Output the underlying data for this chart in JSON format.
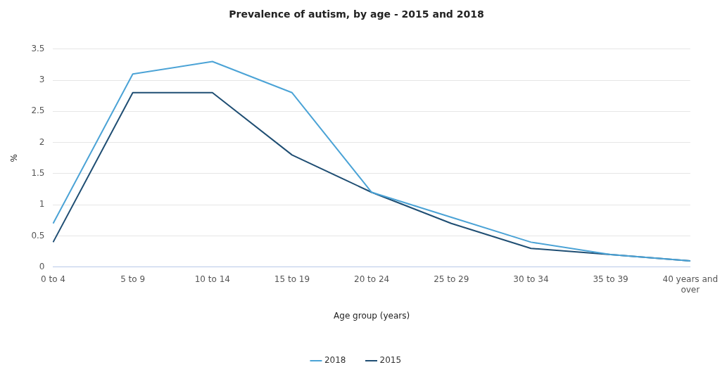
{
  "chart_data": {
    "type": "line",
    "title": "Prevalence of autism, by age - 2015 and 2018",
    "xlabel": "Age group (years)",
    "ylabel": "%",
    "categories": [
      "0 to 4",
      "5 to 9",
      "10 to 14",
      "15 to 19",
      "20 to 24",
      "25 to 29",
      "30 to 34",
      "35 to 39",
      "40 years and over"
    ],
    "series": [
      {
        "name": "2018",
        "color": "#4ba3d6",
        "values": [
          0.7,
          3.1,
          3.3,
          2.8,
          1.2,
          0.8,
          0.4,
          0.2,
          0.1
        ]
      },
      {
        "name": "2015",
        "color": "#1f4e73",
        "values": [
          0.4,
          2.8,
          2.8,
          1.8,
          1.2,
          0.7,
          0.3,
          0.2,
          0.1
        ]
      }
    ],
    "ylim": [
      0,
      3.5
    ],
    "yticks": [
      0,
      0.5,
      1,
      1.5,
      2,
      2.5,
      3,
      3.5
    ],
    "grid": "y",
    "legend": "bottom",
    "marker": "none",
    "line_style": "solid"
  }
}
